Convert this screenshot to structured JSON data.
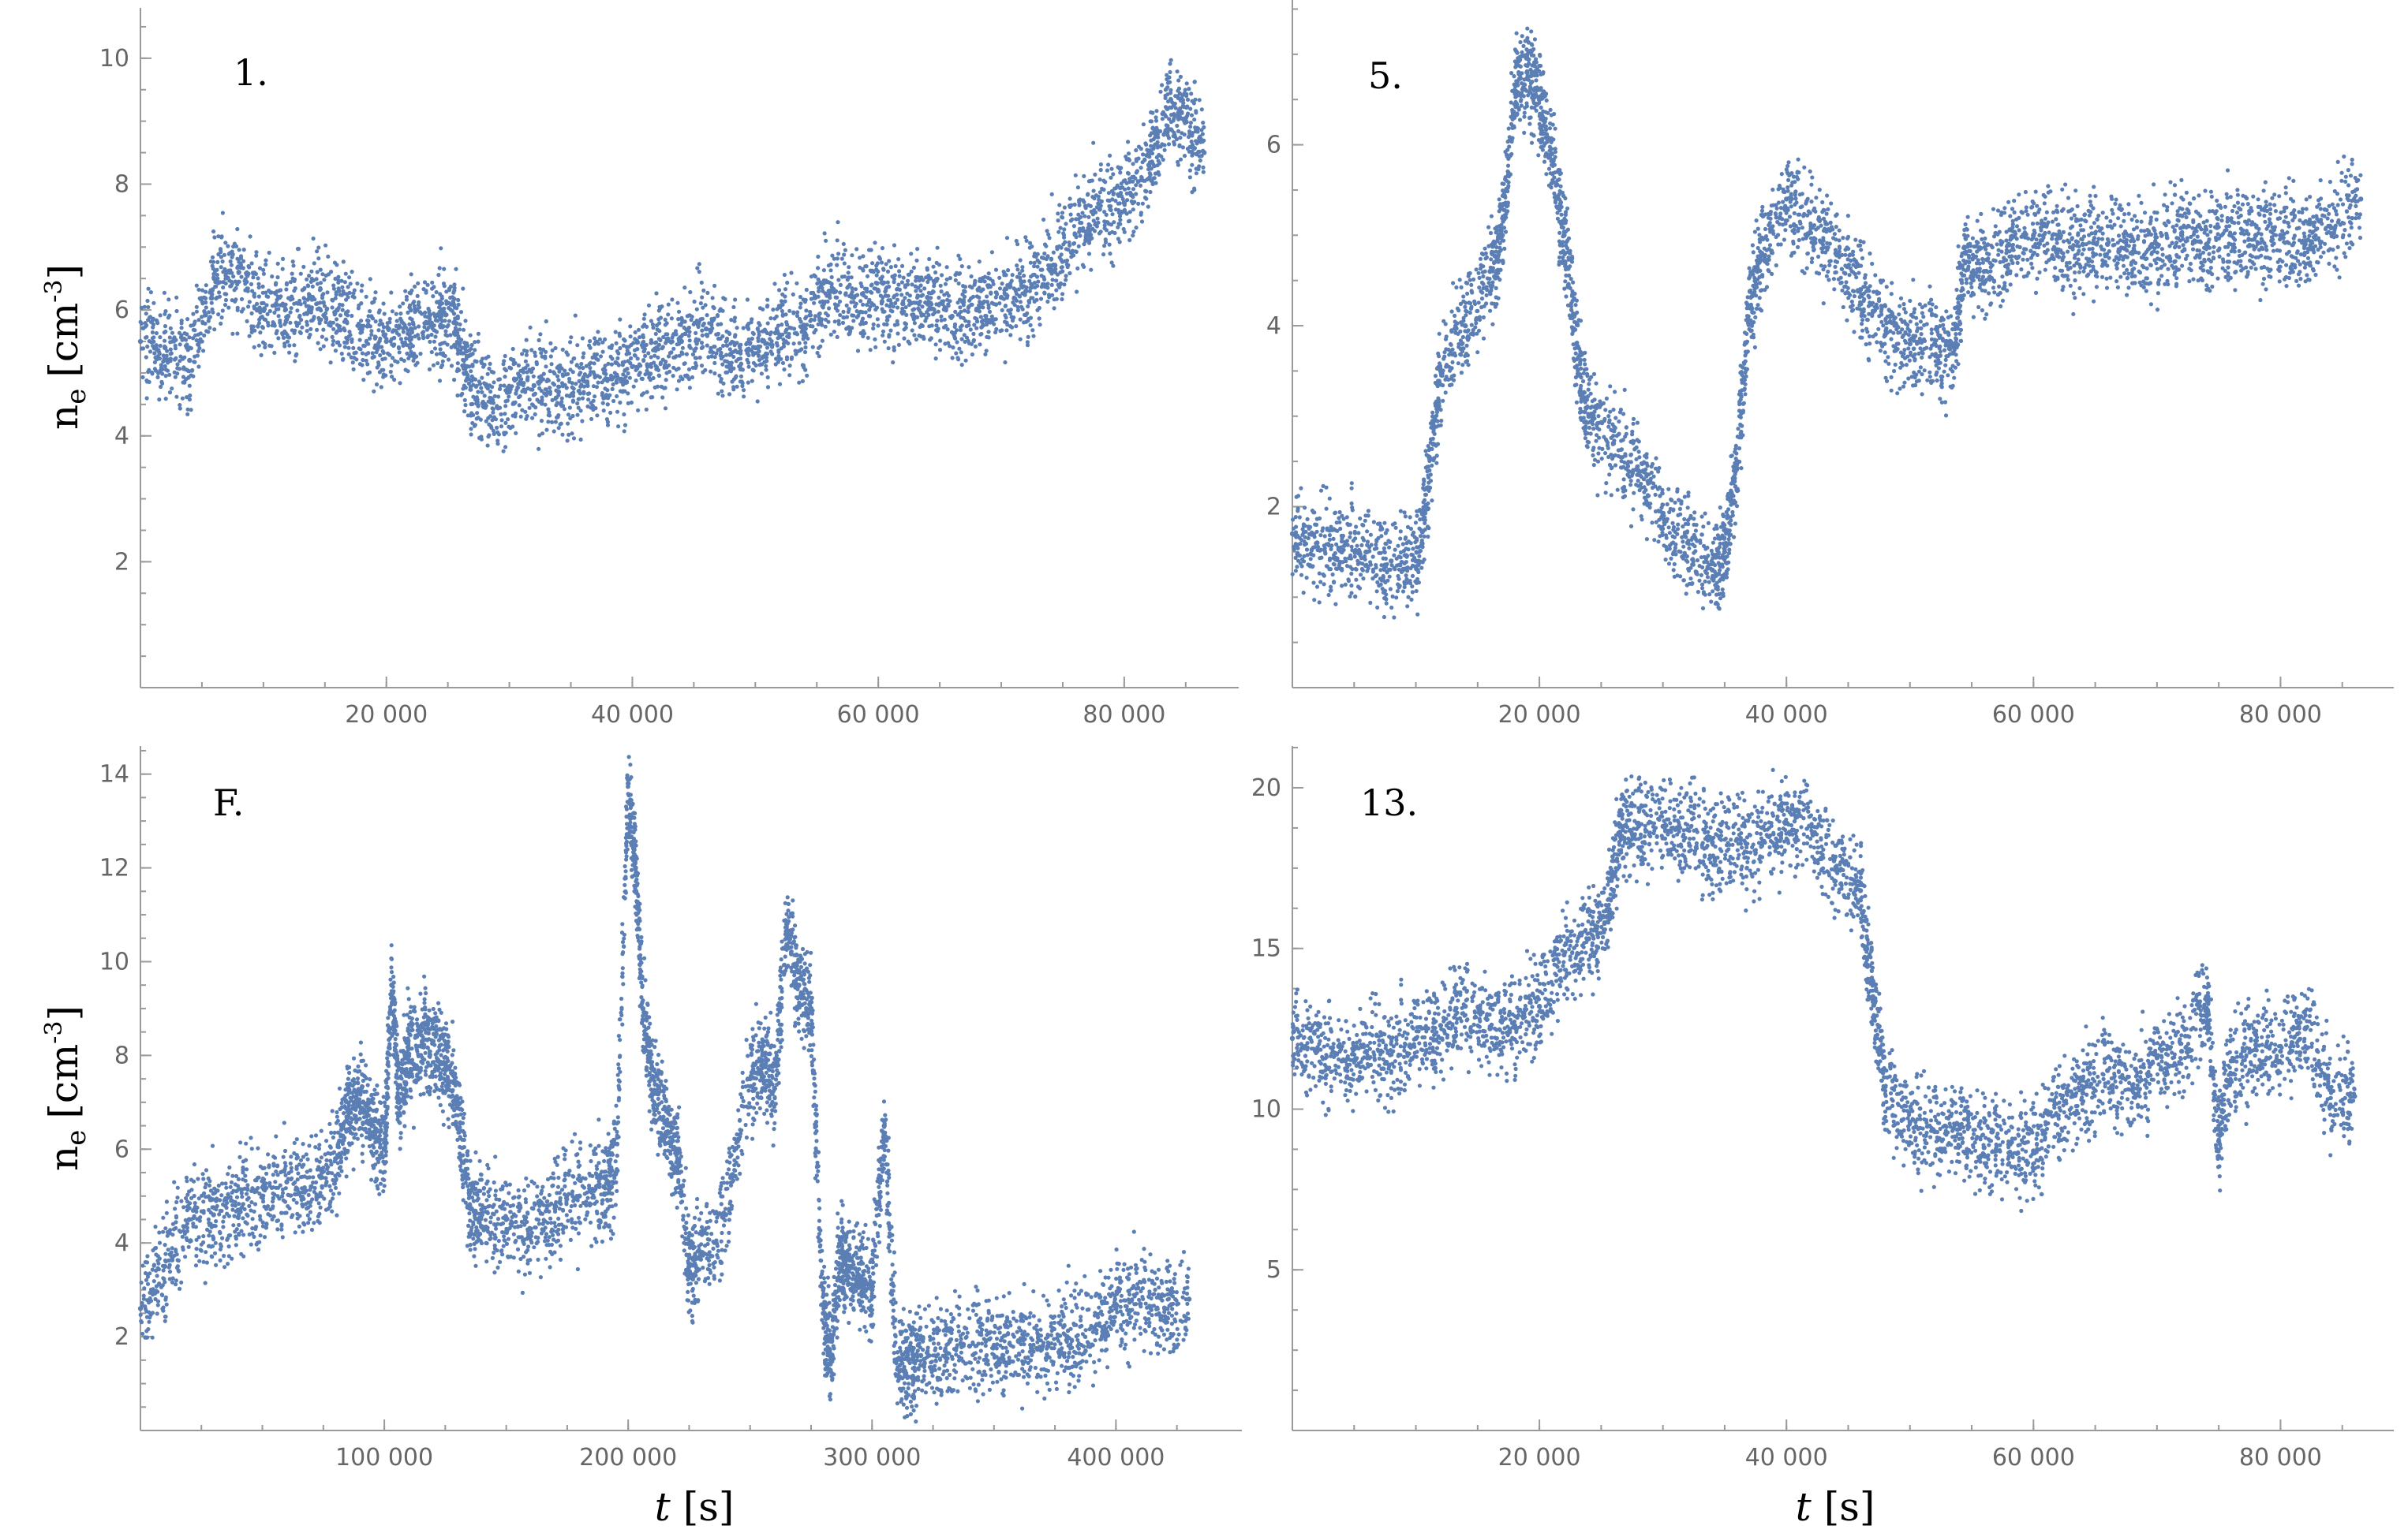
{
  "figure": {
    "y_axis_title": "n",
    "y_axis_title_sub": "e",
    "y_axis_units_open": "[cm",
    "y_axis_units_sup": "-3",
    "y_axis_units_close": "]",
    "x_axis_title": "t",
    "x_axis_units": "[s]"
  },
  "colors": {
    "points": "#5b7fb5",
    "axes": "#9a9a9a",
    "tick_labels": "#666666"
  },
  "chart_data": [
    {
      "type": "scatter",
      "panel_label": "1.",
      "xlim": [
        0,
        87000
      ],
      "ylim": [
        0,
        10.8
      ],
      "xticks": [
        20000,
        40000,
        60000,
        80000
      ],
      "xtick_labels": [
        "20 000",
        "40 000",
        "60 000",
        "80 000"
      ],
      "yticks": [
        2,
        4,
        6,
        8,
        10
      ],
      "ytick_labels": [
        "2",
        "4",
        "6",
        "8",
        "10"
      ],
      "x": [
        0,
        2000,
        4000,
        6000,
        8000,
        10000,
        12000,
        14000,
        16000,
        18000,
        20000,
        22000,
        24000,
        25500,
        26500,
        28000,
        30000,
        32000,
        34000,
        36000,
        38000,
        40000,
        42000,
        44000,
        46000,
        48000,
        50000,
        52000,
        54000,
        56000,
        58000,
        60000,
        62000,
        64000,
        66000,
        68000,
        70000,
        72000,
        74000,
        76000,
        78000,
        80000,
        82000,
        83500,
        85000,
        86500
      ],
      "y": [
        5.5,
        5.4,
        5.2,
        6.5,
        6.6,
        6.0,
        5.9,
        6.2,
        6.0,
        5.7,
        5.5,
        5.7,
        5.9,
        5.8,
        5.1,
        4.5,
        4.7,
        4.8,
        4.7,
        4.9,
        4.9,
        5.1,
        5.4,
        5.5,
        5.7,
        5.3,
        5.4,
        5.6,
        5.7,
        6.3,
        6.2,
        6.3,
        6.1,
        6.2,
        5.9,
        6.0,
        6.2,
        6.3,
        6.7,
        7.2,
        7.6,
        7.7,
        8.3,
        9.2,
        9.0,
        8.5
      ]
    },
    {
      "type": "scatter",
      "panel_label": "5.",
      "xlim": [
        0,
        87000
      ],
      "ylim": [
        0,
        7.6
      ],
      "xticks": [
        20000,
        40000,
        60000,
        80000
      ],
      "xtick_labels": [
        "20 000",
        "40 000",
        "60 000",
        "80 000"
      ],
      "yticks": [
        2,
        4,
        6
      ],
      "ytick_labels": [
        "2",
        "4",
        "6"
      ],
      "x": [
        0,
        2000,
        4000,
        6000,
        8000,
        10000,
        11000,
        12000,
        14000,
        16000,
        17000,
        18000,
        19000,
        20000,
        21000,
        22000,
        23000,
        24000,
        26000,
        28000,
        30000,
        32000,
        34000,
        35000,
        36000,
        37000,
        38000,
        40000,
        42000,
        44000,
        46000,
        48000,
        50000,
        52000,
        53500,
        54500,
        56000,
        58000,
        60000,
        62000,
        64000,
        66000,
        68000,
        70000,
        72000,
        74000,
        76000,
        78000,
        80000,
        82000,
        84000,
        86500
      ],
      "y": [
        1.7,
        1.6,
        1.5,
        1.5,
        1.4,
        1.4,
        2.2,
        3.5,
        4.0,
        4.6,
        5.0,
        6.6,
        6.8,
        6.5,
        5.9,
        5.0,
        3.8,
        3.0,
        2.7,
        2.4,
        1.9,
        1.6,
        1.3,
        1.5,
        2.5,
        4.2,
        4.8,
        5.4,
        5.1,
        4.8,
        4.4,
        3.9,
        3.8,
        3.8,
        3.7,
        4.8,
        4.6,
        4.9,
        5.0,
        5.0,
        4.9,
        4.9,
        4.8,
        4.9,
        5.0,
        4.9,
        5.0,
        5.0,
        5.0,
        4.9,
        5.1,
        5.4
      ]
    },
    {
      "type": "scatter",
      "panel_label": "F.",
      "xlim": [
        0,
        440000
      ],
      "ylim": [
        0,
        14.6
      ],
      "xticks": [
        100000,
        200000,
        300000,
        400000
      ],
      "xtick_labels": [
        "100 000",
        "200 000",
        "300 000",
        "400 000"
      ],
      "yticks": [
        2,
        4,
        6,
        8,
        10,
        12,
        14
      ],
      "ytick_labels": [
        "2",
        "4",
        "6",
        "8",
        "10",
        "12",
        "14"
      ],
      "x": [
        0,
        10000,
        20000,
        30000,
        40000,
        50000,
        60000,
        70000,
        80000,
        85000,
        90000,
        95000,
        100000,
        103000,
        106000,
        110000,
        115000,
        120000,
        125000,
        130000,
        135000,
        140000,
        150000,
        160000,
        170000,
        180000,
        190000,
        195000,
        200000,
        203000,
        206000,
        210000,
        215000,
        220000,
        225000,
        230000,
        240000,
        250000,
        255000,
        260000,
        265000,
        270000,
        275000,
        280000,
        283000,
        287000,
        290000,
        295000,
        300000,
        305000,
        310000,
        315000,
        320000,
        330000,
        340000,
        350000,
        360000,
        370000,
        380000,
        390000,
        400000,
        410000,
        420000,
        430000
      ],
      "y": [
        2.6,
        3.5,
        4.5,
        4.6,
        4.7,
        5.0,
        5.3,
        5.2,
        5.8,
        6.8,
        7.2,
        6.5,
        6.0,
        9.5,
        7.0,
        8.0,
        8.2,
        8.3,
        7.8,
        7.0,
        4.8,
        4.6,
        4.5,
        4.3,
        4.8,
        5.0,
        5.2,
        5.5,
        13.8,
        12.0,
        9.0,
        7.5,
        6.6,
        6.0,
        3.5,
        3.8,
        4.6,
        7.5,
        7.8,
        7.3,
        10.8,
        9.5,
        9.0,
        2.5,
        1.5,
        3.8,
        3.5,
        3.2,
        3.0,
        6.5,
        1.5,
        1.5,
        1.6,
        1.7,
        1.8,
        1.8,
        1.9,
        1.8,
        2.0,
        2.2,
        2.6,
        2.7,
        2.6,
        2.8
      ]
    },
    {
      "type": "scatter",
      "panel_label": "13.",
      "xlim": [
        0,
        87000
      ],
      "ylim": [
        0,
        21.3
      ],
      "xticks": [
        20000,
        40000,
        60000,
        80000
      ],
      "xtick_labels": [
        "20 000",
        "40 000",
        "60 000",
        "80 000"
      ],
      "yticks": [
        5,
        10,
        15,
        20
      ],
      "ytick_labels": [
        "5",
        "10",
        "15",
        "20"
      ],
      "x": [
        0,
        2000,
        4000,
        6000,
        8000,
        10000,
        12000,
        14000,
        16000,
        18000,
        20000,
        22000,
        24000,
        25500,
        26500,
        28000,
        30000,
        32000,
        34000,
        36000,
        38000,
        40000,
        42000,
        44000,
        46000,
        47000,
        48000,
        50000,
        52000,
        54000,
        56000,
        58000,
        60000,
        62000,
        64000,
        66000,
        68000,
        70000,
        72000,
        74000,
        75000,
        76000,
        78000,
        80000,
        82000,
        84000,
        86000
      ],
      "y": [
        12.2,
        11.8,
        11.5,
        11.8,
        11.7,
        12.2,
        12.6,
        13.2,
        12.5,
        12.6,
        13.2,
        14.8,
        15.3,
        16.0,
        18.6,
        18.9,
        18.8,
        18.7,
        18.3,
        18.4,
        18.2,
        18.9,
        18.8,
        17.5,
        16.8,
        13.5,
        10.7,
        9.6,
        9.3,
        9.5,
        8.8,
        8.9,
        8.7,
        9.8,
        10.5,
        11.2,
        10.6,
        11.6,
        11.8,
        13.5,
        9.0,
        11.5,
        12.0,
        11.8,
        12.5,
        10.6,
        10.4
      ]
    }
  ]
}
